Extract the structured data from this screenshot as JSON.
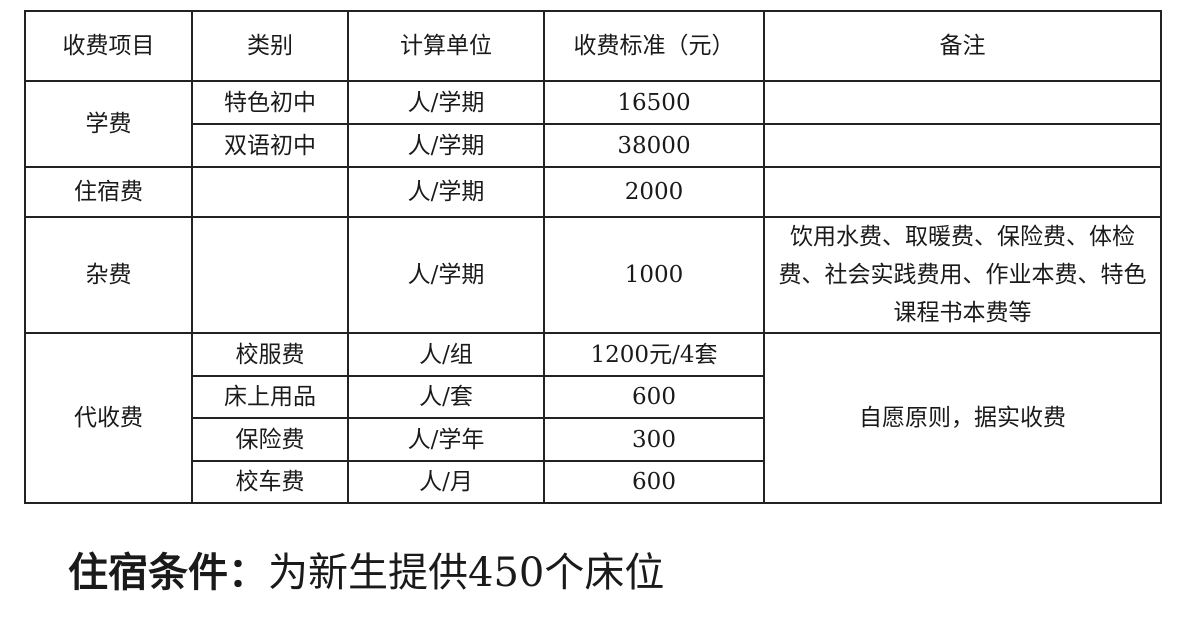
{
  "table": {
    "headers": [
      "收费项目",
      "类别",
      "计算单位",
      "收费标准（元）",
      "备注"
    ],
    "tuition": {
      "item": "学费",
      "rows": [
        {
          "category": "特色初中",
          "unit": "人/学期",
          "fee": "16500",
          "note": ""
        },
        {
          "category": "双语初中",
          "unit": "人/学期",
          "fee": "38000",
          "note": ""
        }
      ]
    },
    "boarding": {
      "item": "住宿费",
      "category": "",
      "unit": "人/学期",
      "fee": "2000",
      "note": ""
    },
    "misc": {
      "item": "杂费",
      "category": "",
      "unit": "人/学期",
      "fee": "1000",
      "note": "饮用水费、取暖费、保险费、体检费、社会实践费用、作业本费、特色课程书本费等"
    },
    "agency": {
      "item": "代收费",
      "note": "自愿原则，据实收费",
      "rows": [
        {
          "category": "校服费",
          "unit": "人/组",
          "fee": "1200元/4套"
        },
        {
          "category": "床上用品",
          "unit": "人/套",
          "fee": "600"
        },
        {
          "category": "保险费",
          "unit": "人/学年",
          "fee": "300"
        },
        {
          "category": "校车费",
          "unit": "人/月",
          "fee": "600"
        }
      ]
    }
  },
  "footer": {
    "label": "住宿条件：",
    "text": "为新生提供450个床位"
  }
}
